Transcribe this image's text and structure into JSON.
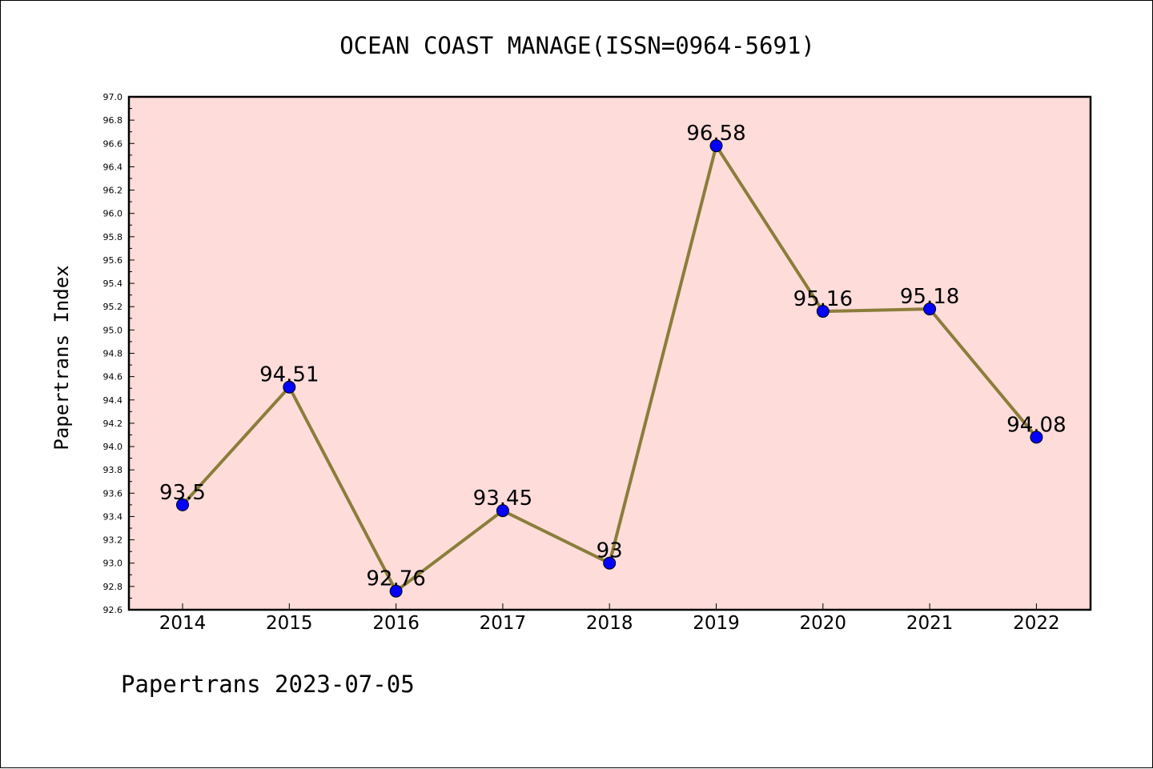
{
  "chart_data": {
    "type": "line",
    "title": "OCEAN COAST MANAGE(ISSN=0964-5691)",
    "xlabel": "",
    "ylabel": "Papertrans Index",
    "categories": [
      "2014",
      "2015",
      "2016",
      "2017",
      "2018",
      "2019",
      "2020",
      "2021",
      "2022"
    ],
    "series": [
      {
        "values": [
          93.5,
          94.51,
          92.76,
          93.45,
          93.0,
          96.58,
          95.16,
          95.18,
          94.08
        ],
        "data_labels": [
          "93.5",
          "94.51",
          "92.76",
          "93.45",
          "93",
          "96.58",
          "95.16",
          "95.18",
          "94.08"
        ]
      }
    ],
    "ylim": [
      92.6,
      97.0
    ],
    "yticks": [
      "92.6",
      "92.8",
      "93.0",
      "93.2",
      "93.4",
      "93.6",
      "93.8",
      "94.0",
      "94.2",
      "94.4",
      "94.6",
      "94.8",
      "95.0",
      "95.2",
      "95.4",
      "95.6",
      "95.8",
      "96.0",
      "96.2",
      "96.4",
      "96.6",
      "96.8",
      "97.0"
    ],
    "grid": false,
    "legend": "none",
    "colors": {
      "plot_background": "#fddcda",
      "line": "#8b7d3a",
      "marker": "#0000ff"
    }
  },
  "footer": "Papertrans 2023-07-05"
}
